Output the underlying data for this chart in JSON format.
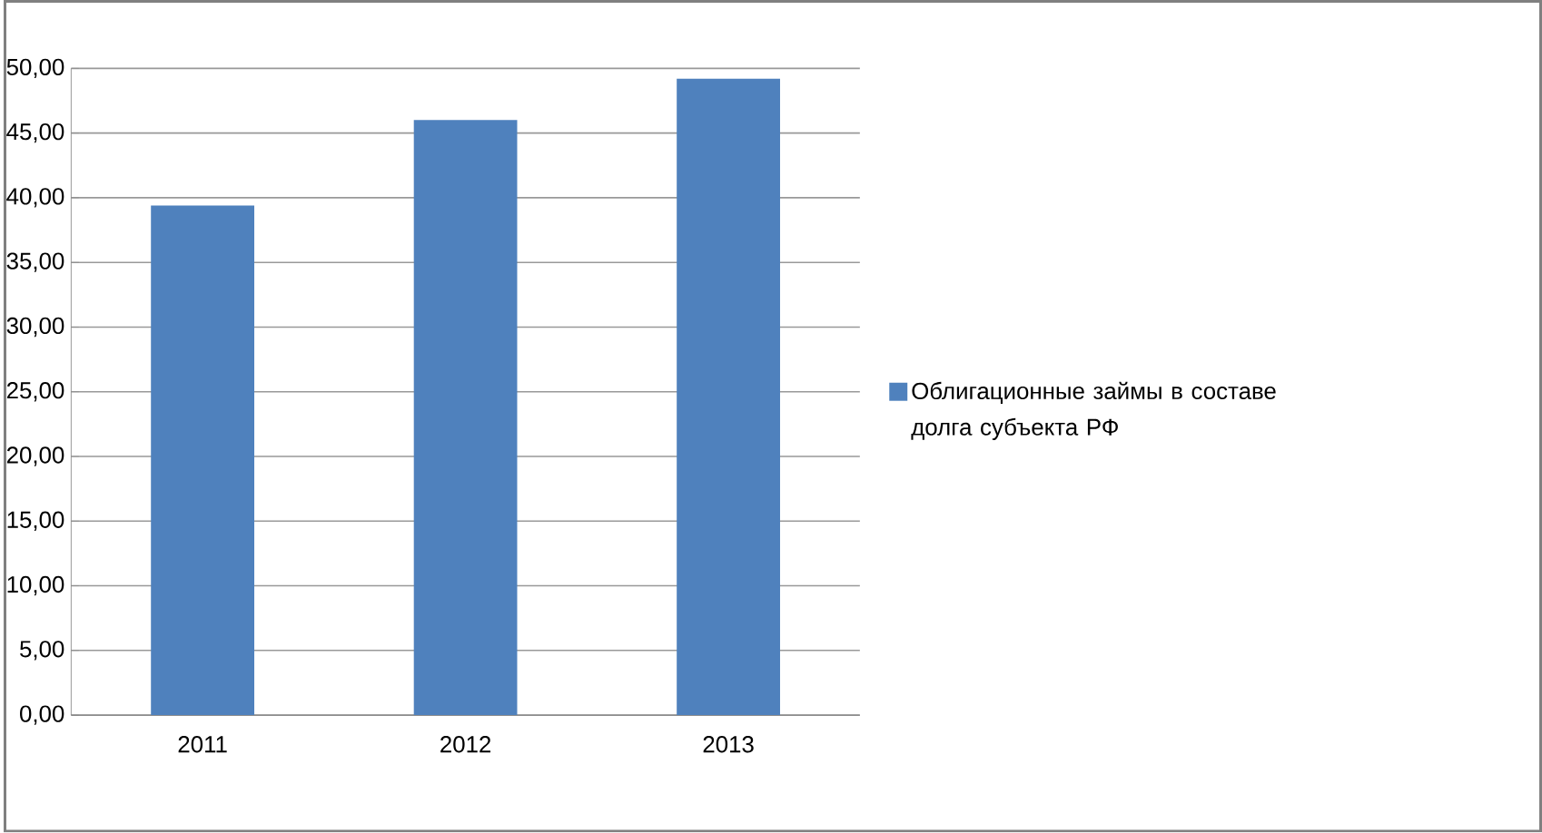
{
  "chart_data": {
    "type": "bar",
    "categories": [
      "2011",
      "2012",
      "2013"
    ],
    "series": [
      {
        "name": "Облигационные займы в составе долга субъекта РФ",
        "color": "#4f81bd",
        "values": [
          39.4,
          46.0,
          49.2
        ]
      }
    ],
    "ylim": [
      0,
      50
    ],
    "yticks": [
      {
        "value": 0,
        "label": "0,00"
      },
      {
        "value": 5,
        "label": "5,00"
      },
      {
        "value": 10,
        "label": "10,00"
      },
      {
        "value": 15,
        "label": "15,00"
      },
      {
        "value": 20,
        "label": "20,00"
      },
      {
        "value": 25,
        "label": "25,00"
      },
      {
        "value": 30,
        "label": "30,00"
      },
      {
        "value": 35,
        "label": "35,00"
      },
      {
        "value": 40,
        "label": "40,00"
      },
      {
        "value": 45,
        "label": "45,00"
      },
      {
        "value": 50,
        "label": "50,00"
      }
    ],
    "grid": "y",
    "legend": "right"
  }
}
